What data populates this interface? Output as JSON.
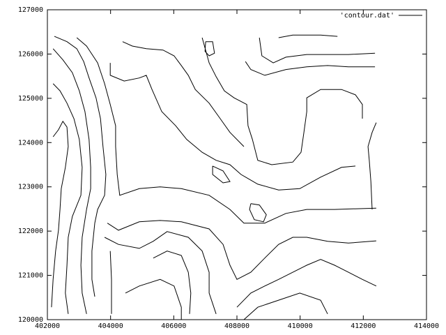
{
  "chart_data": {
    "type": "contour",
    "xlim": [
      402000,
      414000
    ],
    "xticks": [
      402000,
      404000,
      406000,
      408000,
      410000,
      412000,
      414000
    ],
    "ylim": [
      120000,
      127000
    ],
    "yticks": [
      120000,
      121000,
      122000,
      123000,
      124000,
      125000,
      126000,
      127000
    ],
    "grid": false,
    "legend": "top right",
    "series": [
      {
        "name": "'contour.dat'",
        "color": "#000000",
        "x": [
          402180,
          402350,
          402490,
          402620,
          402660,
          402570,
          402440,
          402400,
          402350,
          402260,
          402180,
          402130,
          null,
          402180,
          402400,
          402620,
          402840,
          403010,
          403100,
          403060,
          402790,
          402660,
          402620,
          402570,
          402660,
          null,
          402180,
          402490,
          402790,
          403010,
          403190,
          403320,
          403370,
          403370,
          403240,
          403100,
          403060,
          403100,
          403240,
          null,
          402220,
          402620,
          402930,
          403150,
          403320,
          403540,
          403680,
          403760,
          403850,
          403810,
          403590,
          403500,
          403410,
          403410,
          403500,
          null,
          402930,
          403240,
          403590,
          403810,
          403990,
          404160,
          404160,
          404210,
          404290,
          404910,
          405570,
          406240,
          407120,
          407780,
          408220,
          408880,
          409550,
          410210,
          411090,
          412410,
          null,
          403990,
          403990,
          404430,
          404910,
          405130,
          405310,
          405620,
          406060,
          406410,
          406900,
          407340,
          407780,
          408130,
          408660,
          409320,
          409990,
          410650,
          411310,
          411750,
          null,
          408710,
          408790,
          409150,
          409550,
          410210,
          410870,
          411530,
          412370,
          null,
          408270,
          408440,
          408880,
          409550,
          410210,
          410870,
          411530,
          412370,
          null,
          406900,
          407120,
          407340,
          407600,
          407910,
          408310,
          408350,
          408490,
          408660,
          409100,
          409770,
          410030,
          410120,
          410210,
          410210,
          410650,
          411310,
          411750,
          411970,
          411970,
          null,
          409320,
          409770,
          410650,
          411180,
          null,
          404380,
          404690,
          405130,
          405660,
          406010,
          406240,
          406460,
          406680,
          407120,
          407470,
          407780,
          408220,
          null,
          403900,
          404250,
          404910,
          405570,
          406240,
          407120,
          407560,
          407780,
          408000,
          408440,
          408880,
          409320,
          409770,
          410210,
          410870,
          411530,
          412410,
          null,
          403810,
          404250,
          404910,
          405350,
          405790,
          406460,
          406900,
          407120,
          407120,
          407340,
          null,
          403990,
          404030,
          404030,
          null,
          404470,
          404910,
          405570,
          406010,
          406240,
          406240,
          null,
          405350,
          405790,
          406240,
          406460,
          406540,
          406500,
          null,
          408000,
          408440,
          408880,
          409320,
          409770,
          410210,
          410650,
          411090,
          411530,
          411970,
          412410,
          null,
          408220,
          408660,
          409320,
          409990,
          410650,
          410870,
          null,
          412410,
          412280,
          412150,
          412190,
          412240,
          412280,
          null,
          407010,
          407230,
          407290,
          407120,
          406990,
          407010,
          null,
          407230,
          407560,
          407780,
          407560,
          407230,
          407230,
          null,
          408440,
          408710,
          408930,
          408840,
          408550,
          408400,
          408440
        ],
        "y": [
          124130,
          124290,
          124480,
          124350,
          123910,
          123440,
          122960,
          122490,
          122020,
          121550,
          120910,
          120280,
          null,
          125330,
          125170,
          124890,
          124540,
          124070,
          123440,
          122810,
          122330,
          121860,
          121230,
          120600,
          120130,
          null,
          126120,
          125870,
          125580,
          125170,
          124700,
          124070,
          123440,
          122960,
          122490,
          121860,
          121230,
          120600,
          120130,
          null,
          126400,
          126280,
          126120,
          125830,
          125460,
          125010,
          124540,
          123910,
          123280,
          122810,
          122490,
          122180,
          121550,
          120910,
          120520,
          null,
          126370,
          126180,
          125800,
          125330,
          124860,
          124380,
          123910,
          123280,
          122810,
          122960,
          123000,
          122960,
          122810,
          122490,
          122180,
          122180,
          122400,
          122490,
          122490,
          122520,
          null,
          125800,
          125520,
          125390,
          125460,
          125520,
          125200,
          124700,
          124380,
          124070,
          123780,
          123600,
          123500,
          123280,
          123060,
          122930,
          122960,
          123220,
          123440,
          123470,
          null,
          126370,
          125960,
          125800,
          125930,
          125990,
          125990,
          125990,
          126020,
          null,
          125830,
          125650,
          125520,
          125650,
          125710,
          125740,
          125710,
          125710,
          null,
          126370,
          125800,
          125490,
          125170,
          125010,
          124860,
          124380,
          124070,
          123600,
          123500,
          123560,
          123780,
          124230,
          124700,
          125010,
          125200,
          125200,
          125080,
          124860,
          124540,
          null,
          126370,
          126430,
          126430,
          126400,
          null,
          126280,
          126180,
          126120,
          126090,
          125960,
          125740,
          125520,
          125200,
          124890,
          124540,
          124230,
          123910,
          null,
          122180,
          122020,
          122210,
          122240,
          122210,
          122050,
          121700,
          121230,
          120910,
          121070,
          121390,
          121700,
          121860,
          121860,
          121770,
          121730,
          121780,
          null,
          121860,
          121700,
          121610,
          121770,
          121990,
          121860,
          121550,
          121070,
          120600,
          120130,
          null,
          121550,
          120910,
          120130,
          null,
          120600,
          120760,
          120910,
          120760,
          120280,
          120000,
          null,
          121390,
          121550,
          121450,
          121070,
          120600,
          120130,
          null,
          120280,
          120600,
          120760,
          120910,
          121070,
          121230,
          121360,
          121230,
          121070,
          120910,
          120760,
          null,
          120000,
          120280,
          120440,
          120600,
          120440,
          120130,
          null,
          124450,
          124230,
          123910,
          123600,
          123120,
          122490,
          null,
          126280,
          126280,
          126020,
          125960,
          126060,
          126280,
          null,
          123470,
          123360,
          123120,
          123090,
          123280,
          123470,
          null,
          122620,
          122590,
          122370,
          122210,
          122260,
          122490,
          122620
        ]
      }
    ]
  }
}
